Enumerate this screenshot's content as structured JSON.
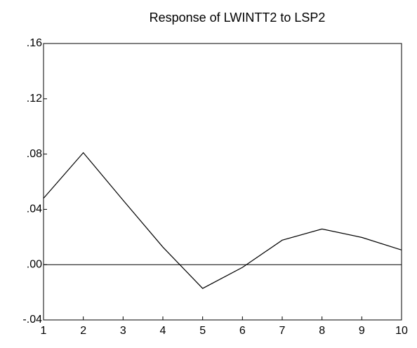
{
  "chart_data": {
    "type": "line",
    "title": "Response of LWINTT2 to LSP2",
    "x": [
      1,
      2,
      3,
      4,
      5,
      6,
      7,
      8,
      9,
      10
    ],
    "series": [
      {
        "color": "#000000",
        "values": [
          0.048,
          0.081,
          0.0466,
          0.0127,
          -0.0172,
          -0.002,
          0.0177,
          0.0258,
          0.0197,
          0.0106
        ]
      }
    ],
    "xlim": [
      1,
      10
    ],
    "xticks": [
      1,
      2,
      3,
      4,
      5,
      6,
      7,
      8,
      9,
      10
    ],
    "ylim": [
      -0.04,
      0.16
    ],
    "yticks": [
      {
        "value": -0.04,
        "label": "-.04"
      },
      {
        "value": 0,
        "label": ".00"
      },
      {
        "value": 0.04,
        "label": ".04"
      },
      {
        "value": 0.08,
        "label": ".08"
      },
      {
        "value": 0.12,
        "label": ".12"
      },
      {
        "value": 0.16,
        "label": ".16"
      }
    ],
    "zero_line": true,
    "grid": false
  }
}
